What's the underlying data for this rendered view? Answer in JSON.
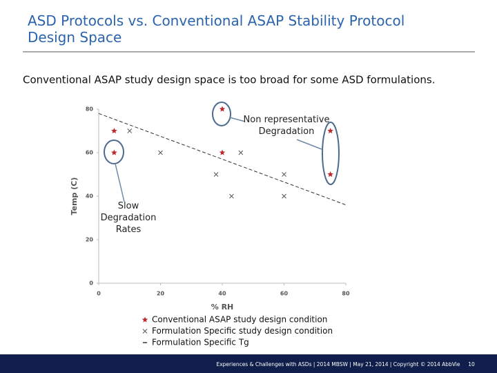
{
  "slide": {
    "title": "ASD Protocols vs. Conventional ASAP Stability Protocol Design Space",
    "subtitle": "Conventional ASAP study design space is too broad for some ASD formulations.",
    "footer": "Experiences & Challenges with ASDs | 2014 MBSW | May 21, 2014 | Copyright © 2014 AbbVie",
    "page_number": "10"
  },
  "chart_data": {
    "type": "scatter",
    "x_label": "% RH",
    "y_label": "Temp (C)",
    "xlim": [
      0,
      80
    ],
    "ylim": [
      0,
      80
    ],
    "xticks": [
      0,
      20,
      40,
      60,
      80
    ],
    "yticks": [
      0,
      20,
      40,
      60,
      80
    ],
    "annotations": [
      "Non representative Degradation",
      "Slow Degradation Rates"
    ],
    "series": [
      {
        "name": "Conventional ASAP study design condition",
        "color": "#c0282d",
        "marker": "star",
        "x": [
          40,
          5,
          5,
          40,
          75,
          75
        ],
        "values": [
          80,
          70,
          60,
          60,
          70,
          50
        ]
      },
      {
        "name": "Formulation Specific study design condition",
        "color": "#555555",
        "marker": "x",
        "x": [
          10,
          20,
          46,
          38,
          60,
          43,
          60
        ],
        "values": [
          70,
          60,
          60,
          50,
          50,
          40,
          40
        ]
      },
      {
        "name": "Formulation Specific Tg",
        "color": "#333333",
        "marker": "line",
        "x": [
          0,
          80
        ],
        "values": [
          78,
          36
        ]
      }
    ]
  }
}
